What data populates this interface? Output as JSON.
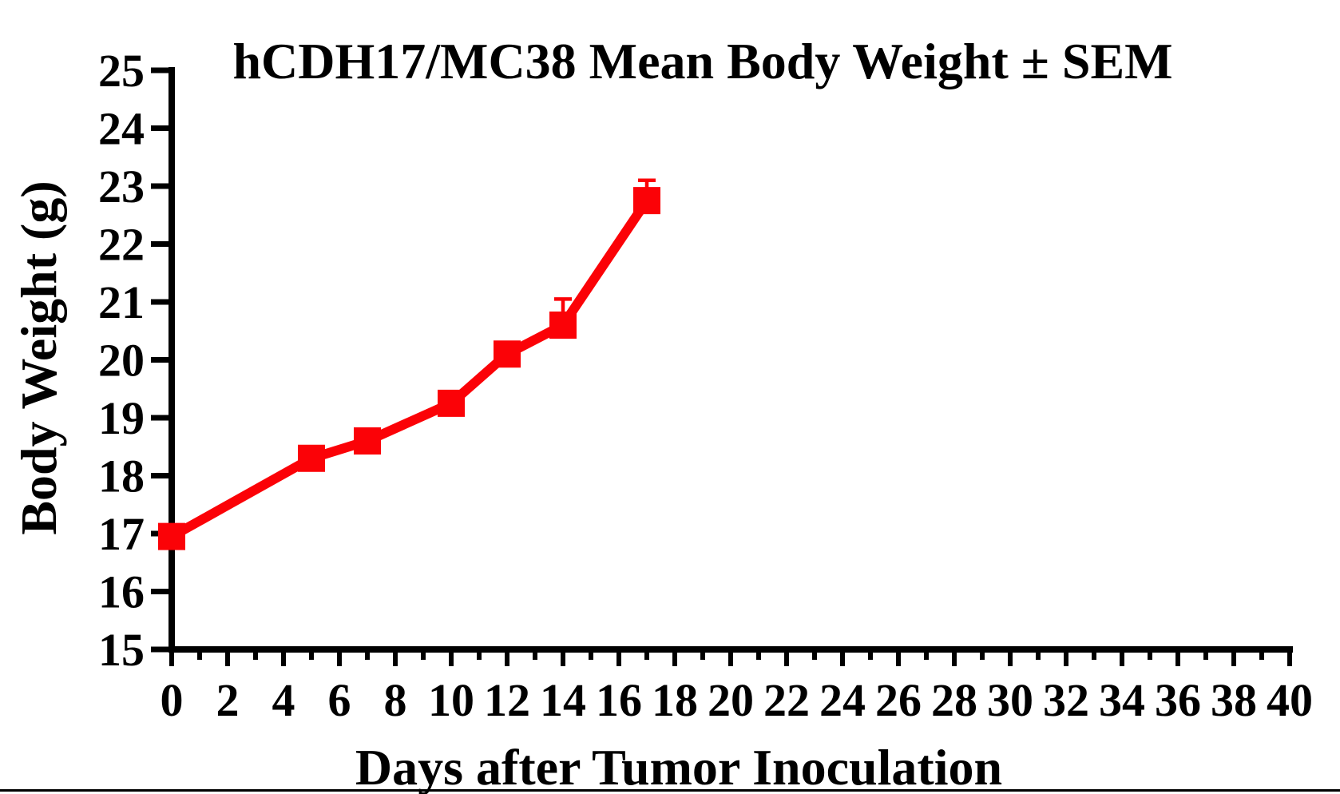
{
  "chart_data": {
    "type": "line",
    "title": "hCDH17/MC38 Mean Body Weight ± SEM",
    "xlabel": "Days after Tumor Inoculation",
    "ylabel": "Body Weight (g)",
    "xlim": [
      0,
      40
    ],
    "ylim": [
      15,
      25
    ],
    "x_major_tick_step": 2,
    "x_minor_tick_step": 1,
    "y_tick_step": 1,
    "x_tick_labels": [
      "0",
      "2",
      "4",
      "6",
      "8",
      "10",
      "12",
      "14",
      "16",
      "18",
      "20",
      "22",
      "24",
      "26",
      "28",
      "30",
      "32",
      "34",
      "36",
      "38",
      "40"
    ],
    "y_tick_labels": [
      "15",
      "16",
      "17",
      "18",
      "19",
      "20",
      "21",
      "22",
      "23",
      "24",
      "25"
    ],
    "grid": false,
    "legend": "none",
    "background_color": "#FFFFFF",
    "axis_color": "#000000",
    "series": [
      {
        "name": "hCDH17/MC38",
        "color": "#FB0207",
        "marker": "square",
        "error_bars": "SEM, upward only where visible",
        "points": [
          {
            "x": 0,
            "y": 16.95,
            "sem": 0
          },
          {
            "x": 5,
            "y": 18.3,
            "sem": 0
          },
          {
            "x": 7,
            "y": 18.6,
            "sem": 0
          },
          {
            "x": 10,
            "y": 19.25,
            "sem": 0
          },
          {
            "x": 12,
            "y": 20.1,
            "sem": 0
          },
          {
            "x": 14,
            "y": 20.6,
            "sem": 0.45
          },
          {
            "x": 17,
            "y": 22.75,
            "sem": 0.35
          }
        ]
      }
    ],
    "footer_rule": true
  }
}
